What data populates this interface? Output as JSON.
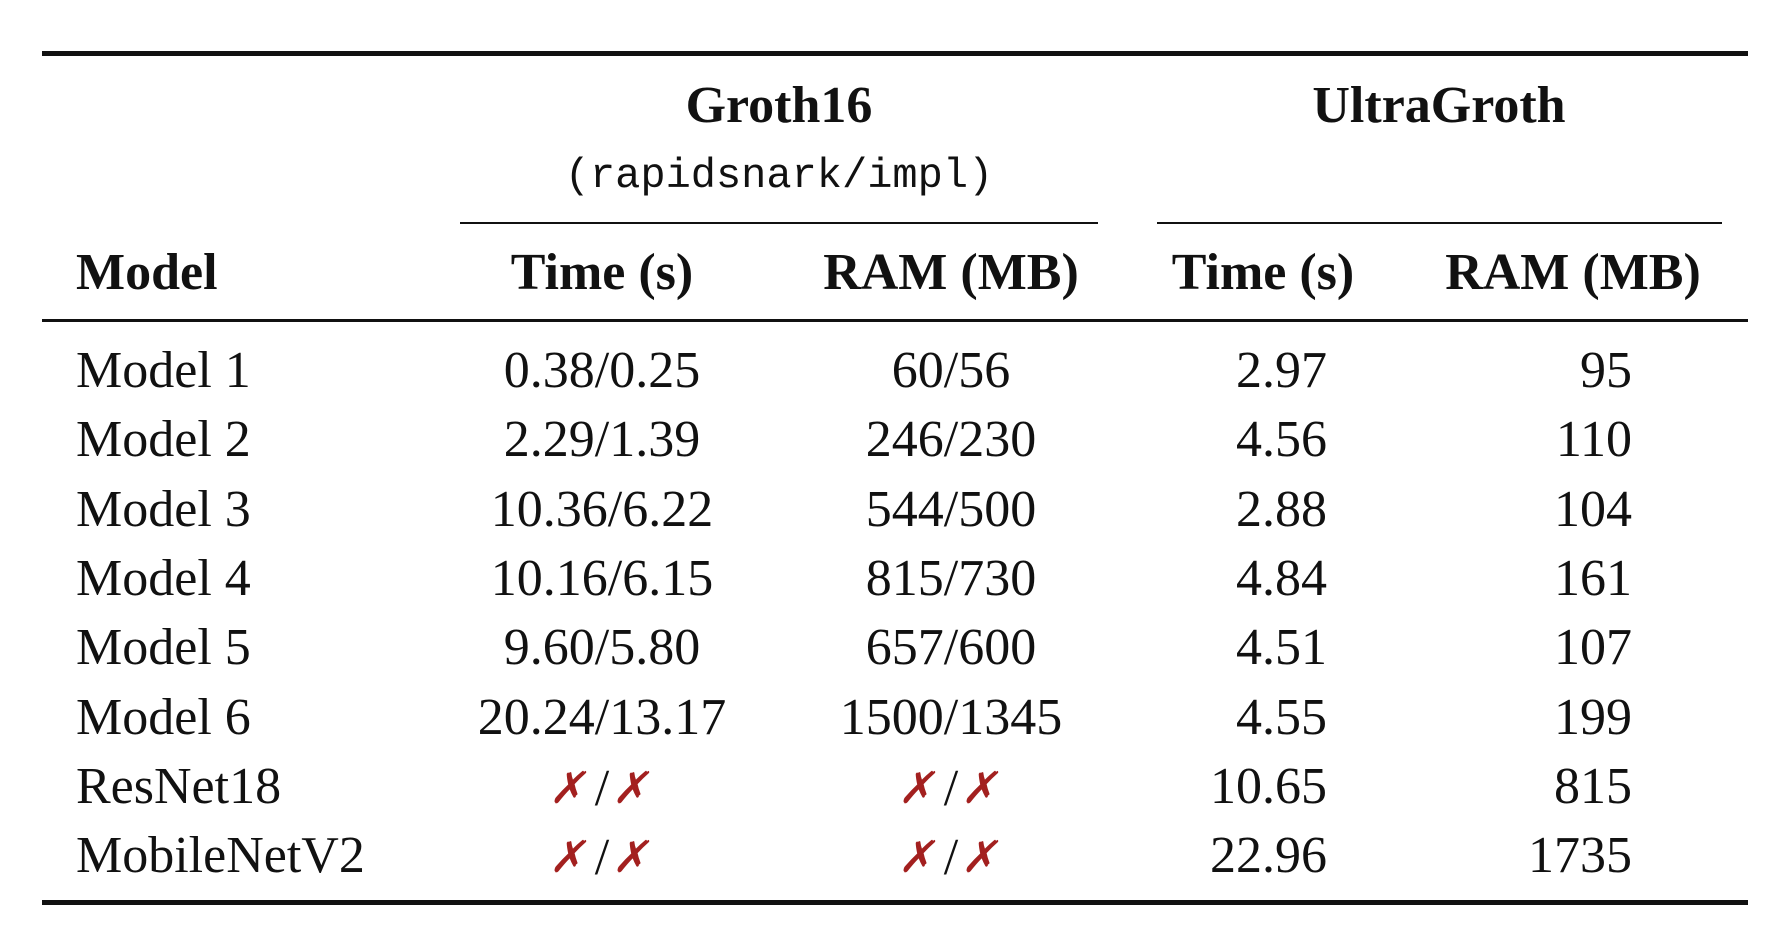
{
  "table": {
    "groups": [
      {
        "title": "Groth16",
        "subtitle": "(rapidsnark/impl)"
      },
      {
        "title": "UltraGroth",
        "subtitle": ""
      }
    ],
    "headers": {
      "model": "Model",
      "groth_time": "Time (s)",
      "groth_ram": "RAM (MB)",
      "ultra_time": "Time (s)",
      "ultra_ram": "RAM (MB)"
    },
    "fail_symbol": "✗",
    "fail_color": "#a3201f",
    "rows": [
      {
        "model": "Model 1",
        "groth_time": "0.38/0.25",
        "groth_ram": "60/56",
        "ultra_time": "2.97",
        "ultra_ram": "95"
      },
      {
        "model": "Model 2",
        "groth_time": "2.29/1.39",
        "groth_ram": "246/230",
        "ultra_time": "4.56",
        "ultra_ram": "110"
      },
      {
        "model": "Model 3",
        "groth_time": "10.36/6.22",
        "groth_ram": "544/500",
        "ultra_time": "2.88",
        "ultra_ram": "104"
      },
      {
        "model": "Model 4",
        "groth_time": "10.16/6.15",
        "groth_ram": "815/730",
        "ultra_time": "4.84",
        "ultra_ram": "161"
      },
      {
        "model": "Model 5",
        "groth_time": "9.60/5.80",
        "groth_ram": "657/600",
        "ultra_time": "4.51",
        "ultra_ram": "107"
      },
      {
        "model": "Model 6",
        "groth_time": "20.24/13.17",
        "groth_ram": "1500/1345",
        "ultra_time": "4.55",
        "ultra_ram": "199"
      },
      {
        "model": "ResNet18",
        "groth_time": "✗/✗",
        "groth_ram": "✗/✗",
        "ultra_time": "10.65",
        "ultra_ram": "815"
      },
      {
        "model": "MobileNetV2",
        "groth_time": "✗/✗",
        "groth_ram": "✗/✗",
        "ultra_time": "22.96",
        "ultra_ram": "1735"
      }
    ]
  }
}
